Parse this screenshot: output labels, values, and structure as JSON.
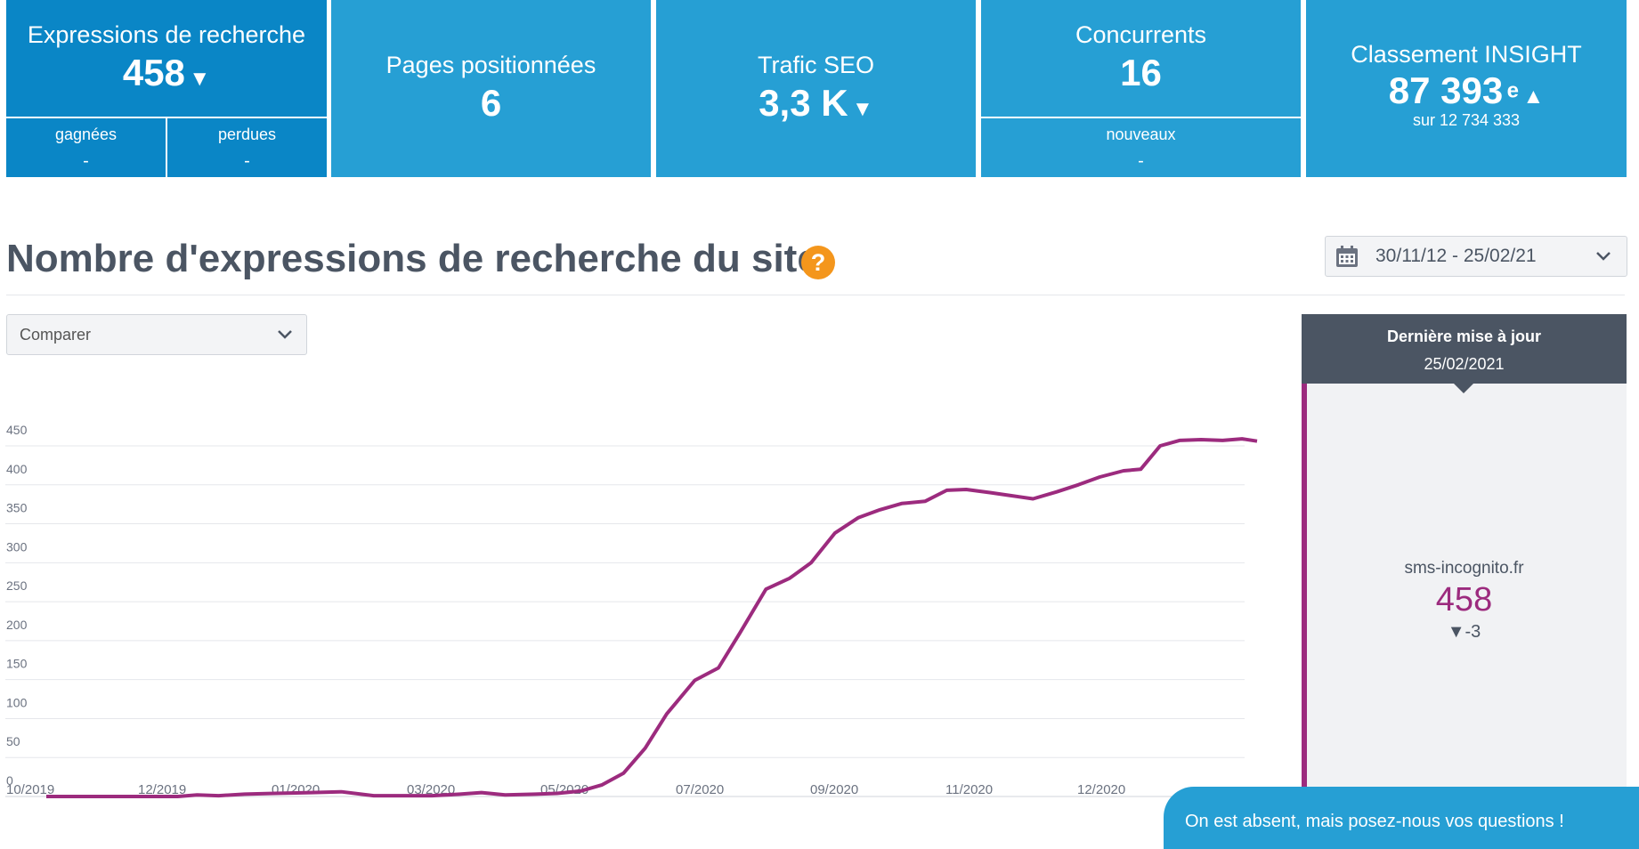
{
  "kpis": {
    "expressions": {
      "title": "Expressions de recherche",
      "value": "458",
      "arrow": "▼",
      "gained_label": "gagnées",
      "gained_value": "-",
      "lost_label": "perdues",
      "lost_value": "-"
    },
    "pages": {
      "title": "Pages positionnées",
      "value": "6"
    },
    "traffic": {
      "title": "Trafic SEO",
      "value": "3,3 K",
      "arrow": "▼"
    },
    "competitors": {
      "title": "Concurrents",
      "value": "16",
      "new_label": "nouveaux",
      "new_value": "-"
    },
    "ranking": {
      "title": "Classement INSIGHT",
      "value": "87 393",
      "suffix": "e",
      "arrow": "▲",
      "sub": "sur 12 734 333"
    }
  },
  "section": {
    "title": "Nombre d'expressions de recherche du site",
    "help": "?"
  },
  "date_range": {
    "label": "30/11/12 - 25/02/21",
    "icon": "calendar-icon"
  },
  "compare": {
    "label": "Comparer"
  },
  "panel": {
    "header": "Dernière mise à jour",
    "date": "25/02/2021",
    "site": "sms-incognito.fr",
    "value": "458",
    "delta": "▼-3"
  },
  "chat": {
    "text": "On est absent, mais posez-nous vos questions !"
  },
  "colors": {
    "tile": "#269fd4",
    "tile_active": "#0a86c6",
    "line": "#9c2b7e",
    "help": "#f4961c",
    "panel_head": "#4b5563"
  },
  "chart_data": {
    "type": "line",
    "title": "",
    "xlabel": "",
    "ylabel": "",
    "ylim": [
      0,
      450
    ],
    "y_ticks": [
      0,
      50,
      100,
      150,
      200,
      250,
      300,
      350,
      400,
      450
    ],
    "x_ticks": [
      "10/2019",
      "12/2019",
      "01/2020",
      "03/2020",
      "05/2020",
      "07/2020",
      "09/2020",
      "11/2020",
      "12/2020"
    ],
    "series": [
      {
        "values": [
          [
            "2019-10-01",
            0
          ],
          [
            "2019-11-01",
            0
          ],
          [
            "2019-11-15",
            0
          ],
          [
            "2019-12-01",
            0
          ],
          [
            "2019-12-10",
            2
          ],
          [
            "2019-12-20",
            1
          ],
          [
            "2020-01-01",
            3
          ],
          [
            "2020-01-15",
            4
          ],
          [
            "2020-02-01",
            5
          ],
          [
            "2020-02-15",
            6
          ],
          [
            "2020-03-01",
            1
          ],
          [
            "2020-03-15",
            1
          ],
          [
            "2020-03-28",
            1
          ],
          [
            "2020-04-10",
            3
          ],
          [
            "2020-04-20",
            5
          ],
          [
            "2020-05-01",
            2
          ],
          [
            "2020-05-15",
            3
          ],
          [
            "2020-05-25",
            4
          ],
          [
            "2020-06-05",
            7
          ],
          [
            "2020-06-15",
            15
          ],
          [
            "2020-06-25",
            30
          ],
          [
            "2020-07-05",
            62
          ],
          [
            "2020-07-15",
            106
          ],
          [
            "2020-07-28",
            149
          ],
          [
            "2020-08-08",
            165
          ],
          [
            "2020-08-18",
            210
          ],
          [
            "2020-08-30",
            266
          ],
          [
            "2020-09-10",
            280
          ],
          [
            "2020-09-20",
            300
          ],
          [
            "2020-10-01",
            338
          ],
          [
            "2020-10-12",
            358
          ],
          [
            "2020-10-22",
            368
          ],
          [
            "2020-11-01",
            376
          ],
          [
            "2020-11-12",
            379
          ],
          [
            "2020-11-22",
            393
          ],
          [
            "2020-12-01",
            394
          ],
          [
            "2020-12-12",
            390
          ],
          [
            "2020-12-22",
            386
          ],
          [
            "2021-01-01",
            382
          ],
          [
            "2021-01-12",
            391
          ],
          [
            "2021-01-22",
            400
          ],
          [
            "2021-02-01",
            410
          ],
          [
            "2021-02-12",
            418
          ],
          [
            "2021-02-20",
            420
          ],
          [
            "2021-03-01",
            450
          ],
          [
            "2021-03-10",
            457
          ],
          [
            "2021-03-20",
            458
          ],
          [
            "2021-03-30",
            457
          ],
          [
            "2021-04-08",
            459
          ],
          [
            "2021-04-15",
            456
          ]
        ]
      }
    ]
  }
}
